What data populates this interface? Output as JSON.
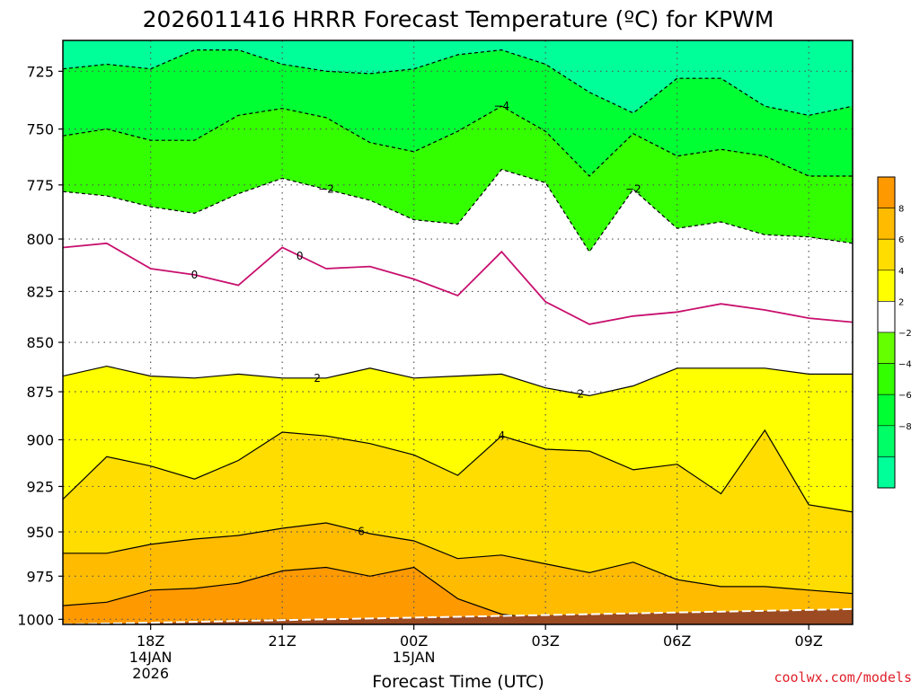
{
  "title": "2026011416 HRRR Forecast Temperature (ºC) for KPWM",
  "xlabel": "Forecast Time (UTC)",
  "credit": "coolwx.com/models",
  "chart_data": {
    "type": "contour",
    "title": "2026011416 HRRR Forecast Temperature (ºC) for KPWM",
    "xlabel": "Forecast Time (UTC)",
    "ylabel": "",
    "x_ticks": [
      {
        "hour": 2,
        "lines": [
          "18Z",
          "14JAN",
          "2026"
        ]
      },
      {
        "hour": 5,
        "lines": [
          "21Z"
        ]
      },
      {
        "hour": 8,
        "lines": [
          "00Z",
          "15JAN"
        ]
      },
      {
        "hour": 11,
        "lines": [
          "03Z"
        ]
      },
      {
        "hour": 14,
        "lines": [
          "06Z"
        ]
      },
      {
        "hour": 17,
        "lines": [
          "09Z"
        ]
      }
    ],
    "xlim_hours_from_16Z": [
      0,
      18
    ],
    "y_ticks": [
      725,
      750,
      775,
      800,
      825,
      850,
      875,
      900,
      925,
      950,
      975,
      1000
    ],
    "ylim_hPa": [
      1003,
      712
    ],
    "y_scale": "log-pressure",
    "grid": true,
    "colorbar": {
      "levels": [
        -10,
        -8,
        -6,
        -4,
        -2,
        2,
        4,
        6,
        8,
        10
      ],
      "labels": [
        "−8",
        "−6",
        "−4",
        "−2",
        "2",
        "4",
        "6",
        "8"
      ],
      "colors": [
        "#00ff99",
        "#00ff66",
        "#00ff33",
        "#33ff00",
        "#66ff00",
        "#ffffff",
        "#ffff00",
        "#ffdd00",
        "#ffbb00",
        "#ff9900"
      ]
    },
    "hours": [
      0,
      1,
      2,
      3,
      4,
      5,
      6,
      7,
      8,
      9,
      10,
      11,
      12,
      13,
      14,
      15,
      16,
      17,
      18
    ],
    "contours": [
      {
        "level": -6,
        "label": "",
        "pressure": [
          724,
          722,
          724,
          716,
          716,
          722,
          725,
          726,
          724,
          718,
          716,
          722,
          734,
          743,
          728,
          728,
          740,
          744,
          740
        ]
      },
      {
        "level": -4,
        "label": "−4",
        "pressure": [
          753,
          750,
          755,
          755,
          744,
          741,
          745,
          756,
          760,
          751,
          740,
          751,
          771,
          752,
          762,
          759,
          762,
          771,
          771
        ]
      },
      {
        "level": -2,
        "label": "−2",
        "pressure": [
          778,
          780,
          785,
          788,
          779,
          772,
          777,
          782,
          791,
          793,
          768,
          774,
          806,
          777,
          795,
          792,
          798,
          799,
          802
        ]
      },
      {
        "level": 0,
        "label": "0",
        "pressure": [
          804,
          802,
          814,
          817,
          822,
          804,
          814,
          813,
          819,
          827,
          806,
          830,
          841,
          837,
          835,
          831,
          834,
          838,
          840
        ]
      },
      {
        "level": 2,
        "label": "2",
        "pressure": [
          867,
          862,
          867,
          868,
          866,
          868,
          868,
          863,
          868,
          867,
          866,
          873,
          877,
          872,
          863,
          863,
          863,
          866,
          866
        ]
      },
      {
        "level": 4,
        "label": "4",
        "pressure": [
          932,
          909,
          914,
          921,
          911,
          896,
          898,
          902,
          908,
          919,
          898,
          905,
          906,
          916,
          913,
          929,
          895,
          935,
          939
        ]
      },
      {
        "level": 6,
        "label": "6",
        "pressure": [
          962,
          962,
          957,
          954,
          952,
          948,
          945,
          951,
          955,
          965,
          963,
          968,
          973,
          967,
          977,
          981,
          981,
          983,
          985
        ]
      },
      {
        "level": 8,
        "label": "",
        "pressure": [
          992,
          990,
          983,
          982,
          979,
          972,
          970,
          975,
          970,
          988,
          997,
          1000,
          1002,
          1002,
          1002,
          1002,
          1002,
          1002,
          1002
        ]
      }
    ],
    "ground": {
      "hour_start": 0,
      "hour_end": 18,
      "pressure_start": 1003,
      "pressure_end": 994
    }
  }
}
